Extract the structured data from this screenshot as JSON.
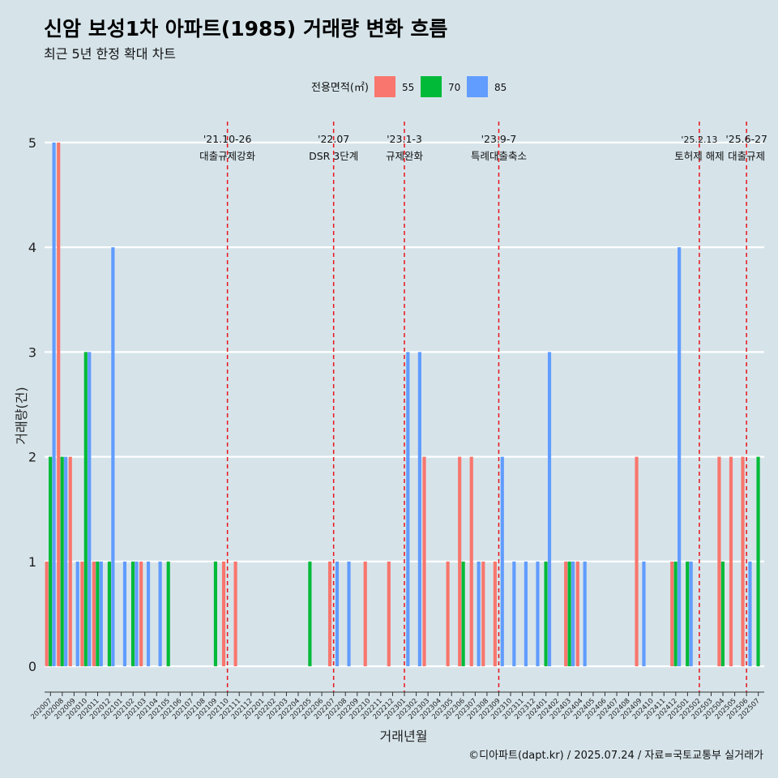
{
  "header": {
    "title": "신암 보성1차 아파트(1985) 거래량 변화 흐름",
    "subtitle": "최근 5년 한정 확대 차트"
  },
  "caption": "©디아파트(dapt.kr) / 2025.07.24 / 자료=국토교통부 실거래가",
  "chart_data": {
    "type": "bar",
    "xlabel": "거래년월",
    "ylabel": "거래량(건)",
    "ylim": [
      -0.2,
      5.2
    ],
    "yticks": [
      0,
      1,
      2,
      3,
      4,
      5
    ],
    "grid": true,
    "legend": {
      "title": "전용면적(㎡)",
      "position": "top"
    },
    "categories": [
      "202007",
      "202008",
      "202009",
      "202010",
      "202011",
      "202012",
      "202101",
      "202102",
      "202103",
      "202104",
      "202105",
      "202106",
      "202107",
      "202108",
      "202109",
      "202110",
      "202111",
      "202112",
      "202201",
      "202202",
      "202203",
      "202204",
      "202205",
      "202206",
      "202207",
      "202208",
      "202209",
      "202210",
      "202211",
      "202212",
      "202301",
      "202302",
      "202303",
      "202304",
      "202305",
      "202306",
      "202307",
      "202308",
      "202309",
      "202310",
      "202311",
      "202312",
      "202401",
      "202402",
      "202403",
      "202404",
      "202405",
      "202406",
      "202407",
      "202408",
      "202409",
      "202410",
      "202411",
      "202412",
      "202501",
      "202502",
      "202503",
      "202504",
      "202505",
      "202506",
      "202507"
    ],
    "series": [
      {
        "name": "55",
        "color": "#f8766d",
        "values": [
          1,
          5,
          2,
          1,
          1,
          0,
          0,
          0,
          1,
          0,
          0,
          0,
          0,
          0,
          0,
          1,
          1,
          0,
          0,
          0,
          0,
          0,
          0,
          0,
          1,
          0,
          0,
          1,
          0,
          1,
          0,
          0,
          2,
          0,
          1,
          2,
          2,
          1,
          1,
          0,
          0,
          0,
          0,
          0,
          1,
          1,
          0,
          0,
          0,
          0,
          2,
          0,
          0,
          1,
          0,
          0,
          0,
          2,
          2,
          2,
          0
        ]
      },
      {
        "name": "70",
        "color": "#00ba38",
        "values": [
          2,
          2,
          0,
          3,
          1,
          1,
          0,
          1,
          0,
          0,
          1,
          0,
          0,
          0,
          1,
          0,
          0,
          0,
          0,
          0,
          0,
          0,
          1,
          0,
          0,
          0,
          0,
          0,
          0,
          0,
          0,
          0,
          0,
          0,
          0,
          1,
          0,
          0,
          0,
          0,
          0,
          0,
          1,
          0,
          1,
          0,
          0,
          0,
          0,
          0,
          0,
          0,
          0,
          1,
          1,
          0,
          0,
          1,
          0,
          0,
          2
        ]
      },
      {
        "name": "85",
        "color": "#619cff",
        "values": [
          5,
          2,
          1,
          3,
          1,
          4,
          1,
          1,
          1,
          1,
          0,
          0,
          0,
          0,
          0,
          0,
          0,
          0,
          0,
          0,
          0,
          0,
          0,
          0,
          1,
          1,
          0,
          0,
          0,
          0,
          3,
          3,
          0,
          0,
          0,
          0,
          1,
          0,
          2,
          1,
          1,
          1,
          3,
          0,
          1,
          1,
          0,
          0,
          0,
          0,
          1,
          0,
          0,
          4,
          1,
          0,
          0,
          0,
          0,
          1,
          0
        ]
      }
    ],
    "annotations": [
      {
        "at": "202110",
        "date": "'21.10-26",
        "label": "대출규제강화"
      },
      {
        "at": "202207",
        "date": "'22.07",
        "label": "DSR 3단계"
      },
      {
        "at": "202301",
        "date": "'23.1-3",
        "label": "규제완화"
      },
      {
        "at": "202309",
        "date": "'23.9-7",
        "label": "특례대출축소"
      },
      {
        "at": "202502",
        "date": "'25.2.13",
        "label": "토허제 해제"
      },
      {
        "at": "202506",
        "date": "'25.6-27",
        "label": "대출규제"
      }
    ]
  }
}
